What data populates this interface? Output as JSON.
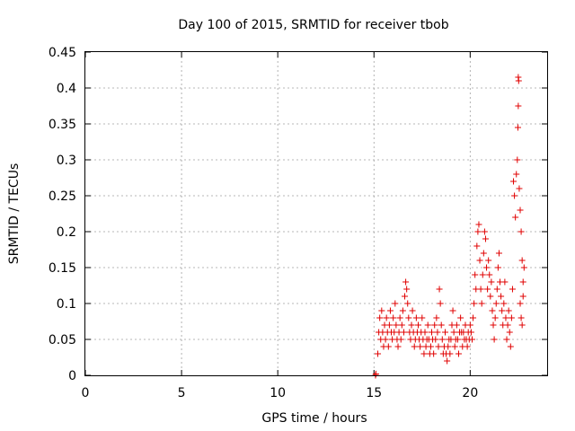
{
  "chart_data": {
    "type": "scatter",
    "title": "Day 100 of 2015, SRMTID for receiver tbob",
    "xlabel": "GPS time / hours",
    "ylabel": "SRMTID / TECUs",
    "xlim": [
      0,
      24
    ],
    "ylim": [
      0,
      0.45
    ],
    "xticks": [
      0,
      5,
      10,
      15,
      20
    ],
    "xtick_labels": [
      "0",
      "5",
      "10",
      "15",
      "20"
    ],
    "yticks": [
      0,
      0.05,
      0.1,
      0.15,
      0.2,
      0.25,
      0.3,
      0.35,
      0.4,
      0.45
    ],
    "ytick_labels": [
      "0",
      "0.05",
      "0.1",
      "0.15",
      "0.2",
      "0.25",
      "0.3",
      "0.35",
      "0.4",
      "0.45"
    ],
    "grid": true,
    "marker": "plus",
    "series_color": "#e00000",
    "series": [
      {
        "name": "SRMTID",
        "points": [
          [
            15.08,
            0.0
          ],
          [
            15.1,
            0.002
          ],
          [
            15.2,
            0.03
          ],
          [
            15.25,
            0.06
          ],
          [
            15.3,
            0.08
          ],
          [
            15.35,
            0.05
          ],
          [
            15.4,
            0.09
          ],
          [
            15.45,
            0.06
          ],
          [
            15.5,
            0.04
          ],
          [
            15.55,
            0.07
          ],
          [
            15.6,
            0.05
          ],
          [
            15.65,
            0.08
          ],
          [
            15.7,
            0.06
          ],
          [
            15.75,
            0.04
          ],
          [
            15.8,
            0.07
          ],
          [
            15.85,
            0.09
          ],
          [
            15.9,
            0.06
          ],
          [
            15.95,
            0.05
          ],
          [
            16.0,
            0.08
          ],
          [
            16.05,
            0.06
          ],
          [
            16.1,
            0.1
          ],
          [
            16.15,
            0.07
          ],
          [
            16.2,
            0.05
          ],
          [
            16.25,
            0.04
          ],
          [
            16.3,
            0.06
          ],
          [
            16.35,
            0.08
          ],
          [
            16.4,
            0.05
          ],
          [
            16.45,
            0.07
          ],
          [
            16.5,
            0.09
          ],
          [
            16.55,
            0.06
          ],
          [
            16.6,
            0.11
          ],
          [
            16.65,
            0.13
          ],
          [
            16.7,
            0.12
          ],
          [
            16.75,
            0.1
          ],
          [
            16.8,
            0.08
          ],
          [
            16.85,
            0.06
          ],
          [
            16.9,
            0.05
          ],
          [
            16.95,
            0.07
          ],
          [
            17.0,
            0.09
          ],
          [
            17.05,
            0.06
          ],
          [
            17.1,
            0.04
          ],
          [
            17.15,
            0.05
          ],
          [
            17.2,
            0.08
          ],
          [
            17.25,
            0.06
          ],
          [
            17.3,
            0.07
          ],
          [
            17.35,
            0.05
          ],
          [
            17.4,
            0.04
          ],
          [
            17.45,
            0.06
          ],
          [
            17.5,
            0.08
          ],
          [
            17.55,
            0.05
          ],
          [
            17.6,
            0.03
          ],
          [
            17.65,
            0.06
          ],
          [
            17.7,
            0.04
          ],
          [
            17.75,
            0.05
          ],
          [
            17.8,
            0.07
          ],
          [
            17.85,
            0.05
          ],
          [
            17.9,
            0.03
          ],
          [
            17.95,
            0.04
          ],
          [
            18.0,
            0.06
          ],
          [
            18.05,
            0.05
          ],
          [
            18.1,
            0.03
          ],
          [
            18.15,
            0.07
          ],
          [
            18.2,
            0.05
          ],
          [
            18.25,
            0.08
          ],
          [
            18.3,
            0.06
          ],
          [
            18.35,
            0.04
          ],
          [
            18.4,
            0.12
          ],
          [
            18.45,
            0.1
          ],
          [
            18.5,
            0.07
          ],
          [
            18.55,
            0.05
          ],
          [
            18.6,
            0.03
          ],
          [
            18.65,
            0.04
          ],
          [
            18.7,
            0.06
          ],
          [
            18.75,
            0.03
          ],
          [
            18.8,
            0.02
          ],
          [
            18.85,
            0.04
          ],
          [
            18.9,
            0.05
          ],
          [
            18.95,
            0.03
          ],
          [
            19.0,
            0.05
          ],
          [
            19.05,
            0.07
          ],
          [
            19.1,
            0.09
          ],
          [
            19.15,
            0.06
          ],
          [
            19.2,
            0.04
          ],
          [
            19.25,
            0.05
          ],
          [
            19.3,
            0.07
          ],
          [
            19.35,
            0.05
          ],
          [
            19.4,
            0.03
          ],
          [
            19.45,
            0.06
          ],
          [
            19.5,
            0.08
          ],
          [
            19.55,
            0.06
          ],
          [
            19.6,
            0.04
          ],
          [
            19.65,
            0.06
          ],
          [
            19.7,
            0.05
          ],
          [
            19.75,
            0.07
          ],
          [
            19.8,
            0.05
          ],
          [
            19.85,
            0.04
          ],
          [
            19.9,
            0.06
          ],
          [
            19.95,
            0.05
          ],
          [
            20.0,
            0.07
          ],
          [
            20.05,
            0.06
          ],
          [
            20.1,
            0.05
          ],
          [
            20.15,
            0.08
          ],
          [
            20.2,
            0.1
          ],
          [
            20.25,
            0.14
          ],
          [
            20.3,
            0.12
          ],
          [
            20.35,
            0.18
          ],
          [
            20.4,
            0.2
          ],
          [
            20.45,
            0.21
          ],
          [
            20.5,
            0.16
          ],
          [
            20.55,
            0.12
          ],
          [
            20.6,
            0.1
          ],
          [
            20.65,
            0.14
          ],
          [
            20.7,
            0.17
          ],
          [
            20.75,
            0.2
          ],
          [
            20.8,
            0.19
          ],
          [
            20.85,
            0.15
          ],
          [
            20.9,
            0.12
          ],
          [
            20.95,
            0.16
          ],
          [
            21.0,
            0.14
          ],
          [
            21.05,
            0.11
          ],
          [
            21.1,
            0.13
          ],
          [
            21.15,
            0.09
          ],
          [
            21.2,
            0.07
          ],
          [
            21.25,
            0.05
          ],
          [
            21.3,
            0.08
          ],
          [
            21.35,
            0.1
          ],
          [
            21.4,
            0.12
          ],
          [
            21.45,
            0.15
          ],
          [
            21.5,
            0.17
          ],
          [
            21.55,
            0.13
          ],
          [
            21.6,
            0.11
          ],
          [
            21.65,
            0.09
          ],
          [
            21.7,
            0.07
          ],
          [
            21.75,
            0.1
          ],
          [
            21.8,
            0.13
          ],
          [
            21.85,
            0.08
          ],
          [
            21.9,
            0.05
          ],
          [
            21.95,
            0.07
          ],
          [
            22.0,
            0.09
          ],
          [
            22.05,
            0.06
          ],
          [
            22.1,
            0.04
          ],
          [
            22.15,
            0.08
          ],
          [
            22.2,
            0.12
          ],
          [
            22.25,
            0.27
          ],
          [
            22.3,
            0.25
          ],
          [
            22.35,
            0.22
          ],
          [
            22.4,
            0.28
          ],
          [
            22.45,
            0.3
          ],
          [
            22.5,
            0.415
          ],
          [
            22.52,
            0.41
          ],
          [
            22.5,
            0.375
          ],
          [
            22.48,
            0.345
          ],
          [
            22.55,
            0.26
          ],
          [
            22.6,
            0.23
          ],
          [
            22.65,
            0.2
          ],
          [
            22.7,
            0.16
          ],
          [
            22.75,
            0.13
          ],
          [
            22.8,
            0.15
          ],
          [
            22.6,
            0.1
          ],
          [
            22.65,
            0.08
          ],
          [
            22.7,
            0.07
          ],
          [
            22.75,
            0.11
          ]
        ]
      }
    ]
  }
}
